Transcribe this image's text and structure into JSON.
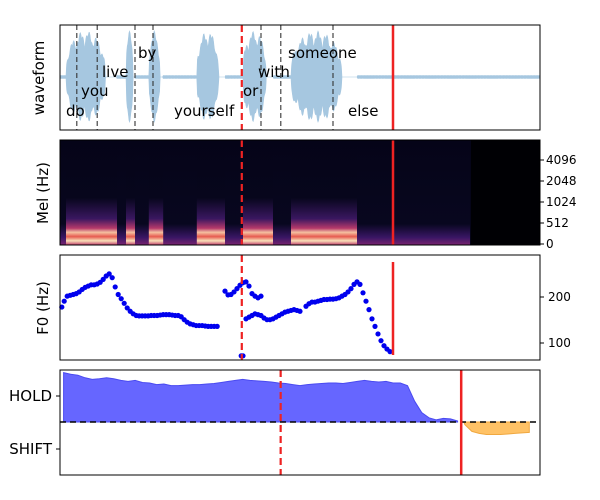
{
  "chart_data": [
    {
      "type": "area",
      "ylabel": "waveform",
      "x_range": [
        0,
        8.0
      ],
      "words": [
        {
          "label": "do",
          "t": 0.1,
          "level": 5
        },
        {
          "label": "you",
          "t": 0.35,
          "level": 4
        },
        {
          "label": "live",
          "t": 0.7,
          "level": 3
        },
        {
          "label": "by",
          "t": 1.3,
          "level": 2
        },
        {
          "label": "yourself",
          "t": 1.9,
          "level": 5
        },
        {
          "label": "or",
          "t": 3.05,
          "level": 4
        },
        {
          "label": "with",
          "t": 3.3,
          "level": 3
        },
        {
          "label": "someone",
          "t": 3.8,
          "level": 2
        },
        {
          "label": "else",
          "t": 4.8,
          "level": 5
        }
      ],
      "word_boundaries": [
        0.28,
        0.62,
        1.25,
        1.55,
        3.35,
        3.68,
        4.55
      ],
      "event_dashed_t": 3.03,
      "event_solid_t": 5.55
    },
    {
      "type": "heatmap",
      "ylabel": "Mel (Hz)",
      "ytick_labels": [
        "0",
        "512",
        "1024",
        "2048",
        "4096"
      ],
      "x_range": [
        0,
        8.0
      ]
    },
    {
      "type": "scatter",
      "ylabel": "F0 (Hz)",
      "ytick_labels": [
        "100",
        "200"
      ],
      "ylim": [
        70,
        320
      ],
      "segments": [
        {
          "x": [
            0.03,
            0.07,
            0.12,
            0.17,
            0.22,
            0.27,
            0.32,
            0.37,
            0.42,
            0.47,
            0.52,
            0.57,
            0.62,
            0.67,
            0.72,
            0.77,
            0.82,
            0.87,
            0.92,
            0.97,
            1.02,
            1.07,
            1.12,
            1.17,
            1.22,
            1.27,
            1.32,
            1.37,
            1.42,
            1.47,
            1.52,
            1.57,
            1.62,
            1.67,
            1.72,
            1.77,
            1.82,
            1.87,
            1.92,
            1.97,
            2.02,
            2.07,
            2.12,
            2.17,
            2.22,
            2.27,
            2.32,
            2.37,
            2.42,
            2.47,
            2.52,
            2.57,
            2.62
          ],
          "y": [
            196,
            210,
            222,
            224,
            226,
            228,
            232,
            238,
            243,
            246,
            249,
            249,
            251,
            255,
            262,
            270,
            275,
            266,
            244,
            226,
            216,
            205,
            194,
            186,
            180,
            176,
            175,
            175,
            175,
            175,
            176,
            176,
            176,
            177,
            178,
            178,
            178,
            177,
            176,
            176,
            173,
            166,
            160,
            156,
            154,
            152,
            152,
            152,
            151,
            150,
            150,
            150,
            150
          ]
        },
        {
          "x": [
            2.75,
            2.8,
            2.85,
            2.9,
            2.95,
            3.0,
            3.05,
            3.1,
            3.15,
            3.2,
            3.25,
            3.3,
            3.35
          ],
          "y": [
            234,
            225,
            226,
            232,
            240,
            248,
            254,
            256,
            246,
            228,
            222,
            218,
            222
          ]
        },
        {
          "x": [
            3.02,
            3.05,
            3.1,
            3.15,
            3.2,
            3.25,
            3.3,
            3.35,
            3.4,
            3.45,
            3.5,
            3.55,
            3.6,
            3.65,
            3.7,
            3.75,
            3.8,
            3.85,
            3.9,
            3.95,
            4.0
          ],
          "y": [
            80,
            80,
            168,
            172,
            176,
            180,
            178,
            176,
            170,
            166,
            166,
            168,
            172,
            176,
            180,
            184,
            186,
            188,
            190,
            188,
            186
          ]
        },
        {
          "x": [
            4.1,
            4.15,
            4.2,
            4.25,
            4.3,
            4.35,
            4.4,
            4.45,
            4.5,
            4.55,
            4.6,
            4.65,
            4.7,
            4.75,
            4.8,
            4.85,
            4.9,
            4.95,
            5.0,
            5.05,
            5.1,
            5.15,
            5.2,
            5.25,
            5.3,
            5.35,
            5.4,
            5.45,
            5.5
          ],
          "y": [
            198,
            204,
            208,
            208,
            210,
            212,
            214,
            214,
            215,
            215,
            216,
            218,
            222,
            226,
            232,
            240,
            250,
            256,
            250,
            230,
            210,
            190,
            168,
            150,
            132,
            116,
            104,
            96,
            90
          ]
        }
      ],
      "event_dashed_t": 3.03,
      "event_solid_t": 5.55
    },
    {
      "type": "area",
      "ytick_labels": [
        "HOLD",
        "SHIFT"
      ],
      "ylim": [
        -1,
        1
      ],
      "x": [
        0.0,
        0.1,
        0.2,
        0.3,
        0.4,
        0.5,
        0.6,
        0.7,
        0.8,
        0.9,
        1.0,
        1.1,
        1.2,
        1.3,
        1.4,
        1.5,
        1.6,
        1.7,
        1.8,
        1.9,
        2.0,
        2.1,
        2.2,
        2.3,
        2.4,
        2.5,
        2.6,
        2.7,
        2.8,
        2.9,
        3.0,
        3.1,
        3.2,
        3.3,
        3.4,
        3.5,
        3.6,
        3.7,
        3.8,
        3.9,
        4.0,
        4.1,
        4.2,
        4.3,
        4.4,
        4.5,
        4.6,
        4.7,
        4.8,
        4.9,
        5.0,
        5.1,
        5.2,
        5.3,
        5.4,
        5.5,
        5.6,
        5.7,
        5.8,
        5.9,
        6.0,
        6.1,
        6.2,
        6.3,
        6.4,
        6.5
      ],
      "y": [
        0.95,
        0.92,
        0.9,
        0.85,
        0.82,
        0.83,
        0.85,
        0.83,
        0.8,
        0.78,
        0.8,
        0.76,
        0.75,
        0.72,
        0.73,
        0.7,
        0.7,
        0.71,
        0.72,
        0.72,
        0.73,
        0.74,
        0.76,
        0.78,
        0.8,
        0.82,
        0.8,
        0.79,
        0.78,
        0.77,
        0.75,
        0.74,
        0.72,
        0.7,
        0.72,
        0.73,
        0.74,
        0.75,
        0.75,
        0.74,
        0.76,
        0.78,
        0.8,
        0.78,
        0.77,
        0.78,
        0.75,
        0.75,
        0.7,
        0.4,
        0.18,
        0.08,
        0.04,
        0.07,
        0.06,
        0.02,
        -0.05,
        -0.18,
        -0.22,
        -0.24,
        -0.24,
        -0.24,
        -0.23,
        -0.22,
        -0.21,
        -0.2
      ],
      "x_range": [
        -0.05,
        6.65
      ],
      "event_dashed_t": 3.03,
      "event_solid_t": 5.55,
      "colors": {
        "hold": "#6666ff",
        "shift": "#ffc266"
      }
    }
  ]
}
